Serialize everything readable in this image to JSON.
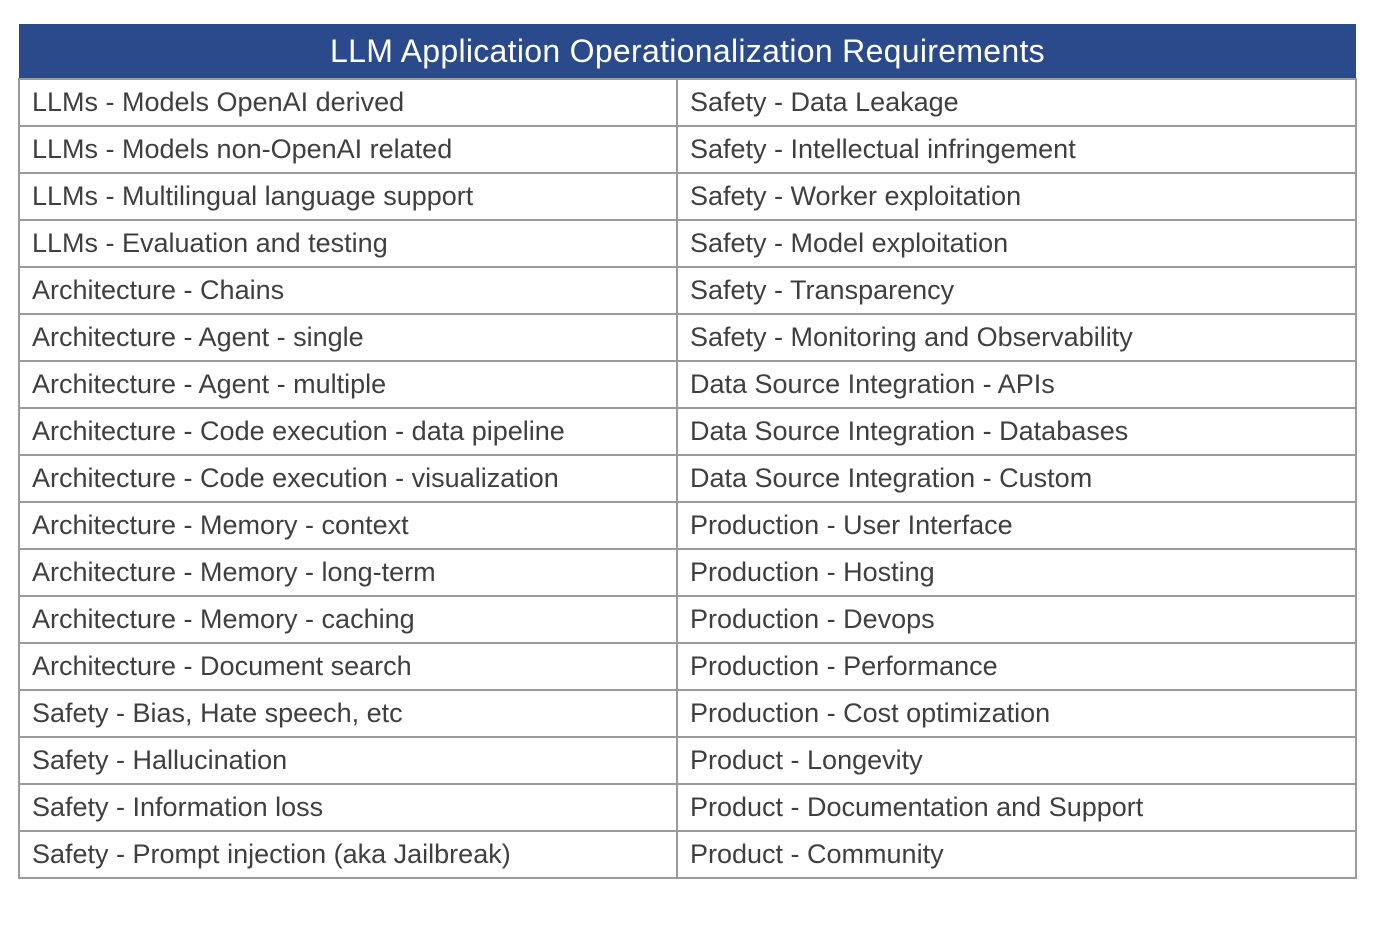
{
  "title": "LLM Application Operationalization Requirements",
  "colors": {
    "header_bg": "#2a4a8c",
    "header_text": "#ffffff",
    "cell_text": "#3f3f3f",
    "border": "#9b9b9b",
    "cell_bg": "#ffffff",
    "page_bg": "#ffffff"
  },
  "table": {
    "rows": [
      {
        "left": "LLMs - Models OpenAI derived",
        "right": "Safety - Data Leakage"
      },
      {
        "left": "LLMs - Models non-OpenAI related",
        "right": "Safety - Intellectual infringement"
      },
      {
        "left": "LLMs - Multilingual language support",
        "right": "Safety - Worker exploitation"
      },
      {
        "left": "LLMs - Evaluation and testing",
        "right": "Safety - Model exploitation"
      },
      {
        "left": "Architecture - Chains",
        "right": "Safety - Transparency"
      },
      {
        "left": "Architecture - Agent - single",
        "right": "Safety - Monitoring and Observability"
      },
      {
        "left": "Architecture - Agent - multiple",
        "right": "Data Source Integration - APIs"
      },
      {
        "left": "Architecture - Code execution - data pipeline",
        "right": "Data Source Integration - Databases"
      },
      {
        "left": "Architecture - Code execution - visualization",
        "right": "Data Source Integration - Custom"
      },
      {
        "left": "Architecture - Memory - context",
        "right": "Production - User Interface"
      },
      {
        "left": "Architecture - Memory - long-term",
        "right": "Production - Hosting"
      },
      {
        "left": "Architecture - Memory - caching",
        "right": "Production - Devops"
      },
      {
        "left": "Architecture - Document search",
        "right": "Production - Performance"
      },
      {
        "left": "Safety - Bias, Hate speech, etc",
        "right": "Production - Cost optimization"
      },
      {
        "left": "Safety - Hallucination",
        "right": "Product - Longevity"
      },
      {
        "left": "Safety - Information loss",
        "right": "Product - Documentation and Support"
      },
      {
        "left": "Safety - Prompt injection (aka Jailbreak)",
        "right": "Product - Community"
      }
    ]
  }
}
